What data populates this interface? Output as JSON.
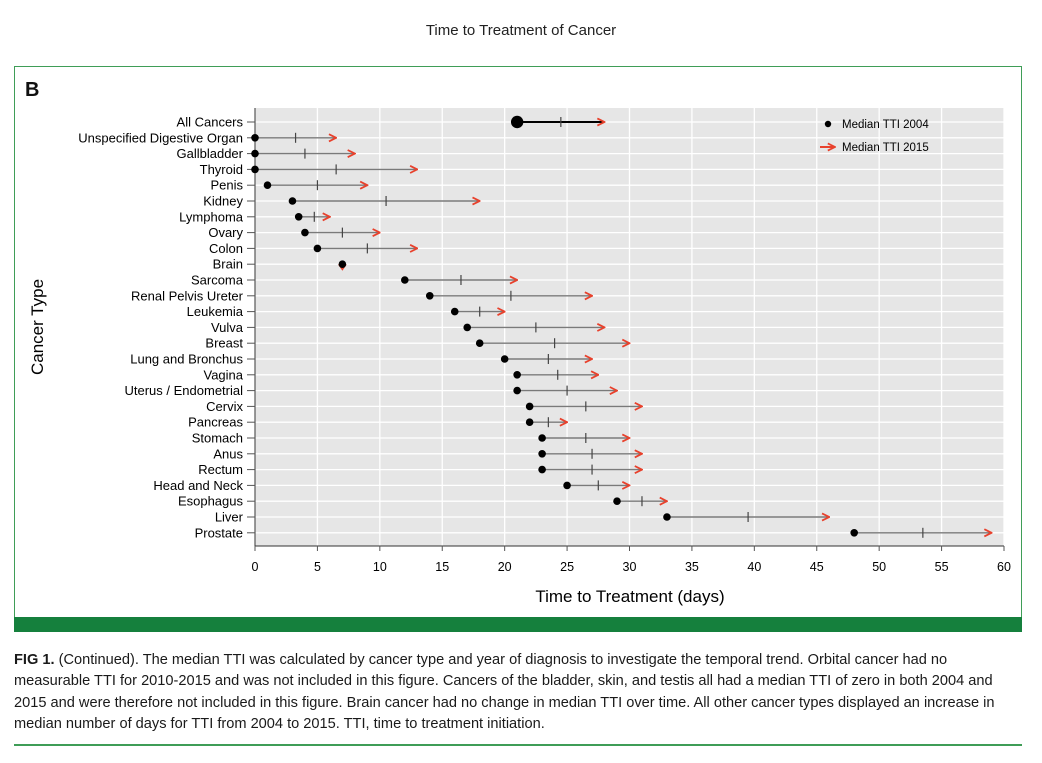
{
  "header": {
    "running_head": "Time to Treatment of Cancer"
  },
  "figure": {
    "panel_label": "B"
  },
  "chart_data": {
    "type": "dumbbell",
    "title": "",
    "xlabel": "Time to Treatment (days)",
    "ylabel": "Cancer Type",
    "xlim": [
      0,
      60
    ],
    "xticks": [
      0,
      5,
      10,
      15,
      20,
      25,
      30,
      35,
      40,
      45,
      50,
      55,
      60
    ],
    "grid": true,
    "legend_position": "top-right",
    "legend": {
      "series_2004": "Median TTI 2004",
      "series_2015": "Median TTI 2015"
    },
    "colors": {
      "tti_2004": "#000000",
      "tti_2015": "#e8412c",
      "line": "#7a7a7a",
      "panel_bg": "#e6e6e6",
      "grid": "#ffffff"
    },
    "categories": [
      "All Cancers",
      "Unspecified Digestive Organ",
      "Gallbladder",
      "Thyroid",
      "Penis",
      "Kidney",
      "Lymphoma",
      "Ovary",
      "Colon",
      "Brain",
      "Sarcoma",
      "Renal Pelvis Ureter",
      "Leukemia",
      "Vulva",
      "Breast",
      "Lung and Bronchus",
      "Vagina",
      "Uterus / Endometrial",
      "Cervix",
      "Pancreas",
      "Stomach",
      "Anus",
      "Rectum",
      "Head and Neck",
      "Esophagus",
      "Liver",
      "Prostate"
    ],
    "series": [
      {
        "name": "Median TTI 2004",
        "values": [
          21,
          0,
          0,
          0,
          1,
          3,
          3.5,
          4,
          5,
          7,
          12,
          14,
          16,
          17,
          18,
          20,
          21,
          21,
          22,
          22,
          23,
          23,
          23,
          25,
          29,
          33,
          48
        ]
      },
      {
        "name": "Median TTI 2015",
        "values": [
          28,
          6.5,
          8,
          13,
          9,
          18,
          6,
          10,
          13,
          7,
          21,
          27,
          20,
          28,
          30,
          27,
          27.5,
          29,
          31,
          25,
          30,
          31,
          31,
          30,
          33,
          46,
          59
        ]
      },
      {
        "name": "Midpoint",
        "values": [
          24.5,
          3.25,
          4,
          6.5,
          5,
          10.5,
          4.75,
          7,
          9,
          7,
          16.5,
          20.5,
          18,
          22.5,
          24,
          23.5,
          24.25,
          25,
          26.5,
          23.5,
          26.5,
          27,
          27,
          27.5,
          31,
          39.5,
          53.5
        ]
      }
    ]
  },
  "caption": {
    "label": "FIG 1.",
    "text": " (Continued). The median TTI was calculated by cancer type and year of diagnosis to investigate the temporal trend. Orbital cancer had no measurable TTI for 2010-2015 and was not included in this figure. Cancers of the bladder, skin, and testis all had a median TTI of zero in both 2004 and 2015 and were therefore not included in this figure. Brain cancer had no change in median TTI over time. All other cancer types displayed an increase in median number of days for TTI from 2004 to 2015. TTI, time to treatment initiation."
  }
}
